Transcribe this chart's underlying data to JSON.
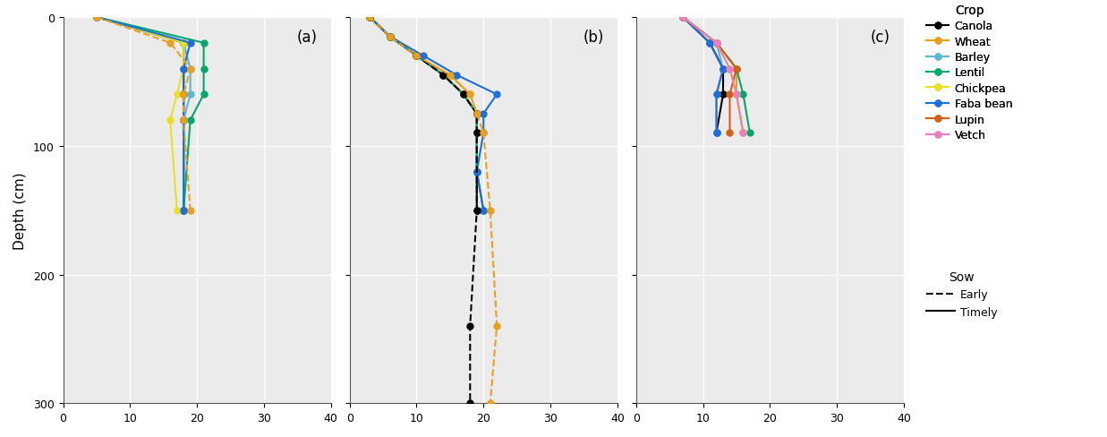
{
  "colors": {
    "Canola": "#000000",
    "Wheat": "#E8A020",
    "Barley": "#5BB8D4",
    "Lentil": "#00A86B",
    "Chickpea": "#E8E020",
    "Faba bean": "#1E6FD9",
    "Lupin": "#D2601A",
    "Vetch": "#E880C0"
  },
  "panel_a": {
    "label": "(a)",
    "crops_timely": {
      "Canola": {
        "x": [
          5,
          18,
          18,
          18,
          18,
          18
        ],
        "depth": [
          0,
          20,
          40,
          60,
          80,
          150
        ]
      },
      "Barley": {
        "x": [
          5,
          18,
          19,
          19,
          18,
          18
        ],
        "depth": [
          0,
          20,
          40,
          60,
          80,
          150
        ]
      },
      "Lentil": {
        "x": [
          5,
          21,
          21,
          21,
          19,
          18
        ],
        "depth": [
          0,
          20,
          40,
          60,
          80,
          150
        ]
      },
      "Chickpea": {
        "x": [
          5,
          18,
          18,
          17,
          16,
          17
        ],
        "depth": [
          0,
          20,
          40,
          60,
          80,
          150
        ]
      },
      "Faba bean": {
        "x": [
          5,
          19,
          18,
          18,
          18,
          18
        ],
        "depth": [
          0,
          20,
          40,
          60,
          80,
          150
        ]
      }
    },
    "crops_early": {
      "Wheat": {
        "x": [
          5,
          16,
          19,
          18,
          18,
          19
        ],
        "depth": [
          0,
          20,
          40,
          60,
          80,
          150
        ]
      }
    }
  },
  "panel_b": {
    "label": "(b)",
    "crops_timely": {
      "Canola": {
        "x": [
          3,
          6,
          10,
          14,
          17,
          19,
          19,
          19,
          19
        ],
        "depth": [
          0,
          15,
          30,
          45,
          60,
          75,
          90,
          120,
          150
        ]
      },
      "Wheat": {
        "x": [
          3,
          6,
          10,
          15,
          18,
          19,
          19,
          19,
          20
        ],
        "depth": [
          0,
          15,
          30,
          45,
          60,
          75,
          90,
          120,
          150
        ]
      },
      "Lentil": {
        "x": [
          3,
          6,
          10,
          14,
          17,
          19,
          19,
          19,
          20
        ],
        "depth": [
          0,
          15,
          30,
          45,
          60,
          75,
          90,
          120,
          150
        ]
      },
      "Faba bean": {
        "x": [
          3,
          6,
          11,
          16,
          22,
          20,
          20,
          19,
          20
        ],
        "depth": [
          0,
          15,
          30,
          45,
          60,
          75,
          90,
          120,
          150
        ]
      }
    },
    "crops_early": {
      "Canola": {
        "x": [
          3,
          6,
          10,
          14,
          17,
          19,
          19,
          19,
          18,
          18
        ],
        "depth": [
          0,
          15,
          30,
          45,
          60,
          75,
          90,
          150,
          240,
          300
        ]
      },
      "Wheat": {
        "x": [
          3,
          6,
          10,
          15,
          18,
          19,
          20,
          21,
          22,
          21
        ],
        "depth": [
          0,
          15,
          30,
          45,
          60,
          75,
          90,
          150,
          240,
          300
        ]
      }
    }
  },
  "panel_c": {
    "label": "(c)",
    "crops_timely": {
      "Canola": {
        "x": [
          7,
          11,
          13,
          13,
          12
        ],
        "depth": [
          0,
          20,
          40,
          60,
          90
        ]
      },
      "Wheat": {
        "x": [
          7,
          12,
          15,
          15,
          16
        ],
        "depth": [
          0,
          20,
          40,
          60,
          90
        ]
      },
      "Barley": {
        "x": [
          7,
          12,
          13,
          12,
          12
        ],
        "depth": [
          0,
          20,
          40,
          60,
          90
        ]
      },
      "Lentil": {
        "x": [
          7,
          12,
          15,
          16,
          17
        ],
        "depth": [
          0,
          20,
          40,
          60,
          90
        ]
      },
      "Chickpea": {
        "x": [
          7,
          12,
          14,
          15,
          16
        ],
        "depth": [
          0,
          20,
          40,
          60,
          90
        ]
      },
      "Faba bean": {
        "x": [
          7,
          11,
          13,
          12,
          12
        ],
        "depth": [
          0,
          20,
          40,
          60,
          90
        ]
      },
      "Lupin": {
        "x": [
          7,
          12,
          15,
          14,
          14
        ],
        "depth": [
          0,
          20,
          40,
          60,
          90
        ]
      },
      "Vetch": {
        "x": [
          7,
          12,
          14,
          15,
          16
        ],
        "depth": [
          0,
          20,
          40,
          60,
          90
        ]
      }
    },
    "crops_early": {}
  },
  "xlim": [
    0,
    40
  ],
  "ylim": [
    300,
    0
  ],
  "xticks": [
    0,
    10,
    20,
    30,
    40
  ],
  "yticks": [
    0,
    100,
    200,
    300
  ],
  "ylabel": "Depth (cm)",
  "background_color": "#EBEBEB",
  "grid_color": "white",
  "marker": "o",
  "markersize": 5,
  "linewidth": 1.5,
  "crop_legend_order": [
    "Canola",
    "Wheat",
    "Barley",
    "Lentil",
    "Chickpea",
    "Faba bean",
    "Lupin",
    "Vetch"
  ]
}
